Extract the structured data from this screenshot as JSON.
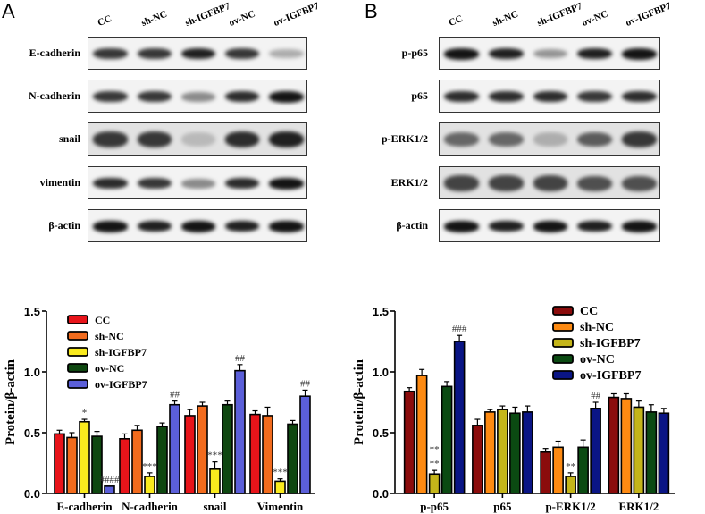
{
  "panels": {
    "A": {
      "letter": "A",
      "lanes": [
        "CC",
        "sh-NC",
        "sh-IGFBP7",
        "ov-NC",
        "ov-IGFBP7"
      ],
      "blots": [
        {
          "label": "E-cadherin",
          "intensity": [
            0.85,
            0.85,
            0.95,
            0.85,
            0.35
          ]
        },
        {
          "label": "N-cadherin",
          "intensity": [
            0.85,
            0.85,
            0.5,
            0.9,
            1.0
          ]
        },
        {
          "label": "snail",
          "intensity": [
            0.85,
            0.85,
            0.3,
            0.9,
            0.95
          ]
        },
        {
          "label": "vimentin",
          "intensity": [
            0.9,
            0.85,
            0.5,
            0.9,
            1.0
          ]
        },
        {
          "label": "β-actin",
          "intensity": [
            1.0,
            0.95,
            1.0,
            0.95,
            1.0
          ]
        }
      ]
    },
    "B": {
      "letter": "B",
      "lanes": [
        "CC",
        "sh-NC",
        "sh-IGFBP7",
        "ov-NC",
        "ov-IGFBP7"
      ],
      "blots": [
        {
          "label": "p-p65",
          "intensity": [
            1.0,
            0.95,
            0.45,
            0.95,
            1.0
          ]
        },
        {
          "label": "p65",
          "intensity": [
            0.9,
            0.9,
            0.9,
            0.85,
            0.9
          ]
        },
        {
          "label": "p-ERK1/2",
          "intensity": [
            0.65,
            0.65,
            0.35,
            0.7,
            0.85
          ]
        },
        {
          "label": "ERK1/2",
          "intensity": [
            0.8,
            0.8,
            0.8,
            0.75,
            0.75
          ]
        },
        {
          "label": "β-actin",
          "intensity": [
            1.0,
            0.95,
            1.0,
            0.95,
            1.0
          ]
        }
      ]
    }
  },
  "chart_data": [
    {
      "type": "bar",
      "title": "",
      "xlabel": "",
      "ylabel": "Protein/β-actin",
      "ylim": [
        0,
        1.5
      ],
      "yticks": [
        "0.0",
        "0.5",
        "1.0",
        "1.5"
      ],
      "grid": false,
      "legend_position": "upper-left-inside",
      "categories": [
        "E-cadherin",
        "N-cadherin",
        "snail",
        "Vimentin"
      ],
      "series": [
        {
          "name": "CC",
          "color": "#e8141a",
          "values": [
            0.49,
            0.45,
            0.64,
            0.65
          ],
          "errors": [
            0.03,
            0.04,
            0.05,
            0.03
          ]
        },
        {
          "name": "sh-NC",
          "color": "#f26b1d",
          "values": [
            0.46,
            0.52,
            0.72,
            0.64
          ],
          "errors": [
            0.04,
            0.04,
            0.03,
            0.07
          ]
        },
        {
          "name": "sh-IGFBP7",
          "color": "#f9ea1e",
          "values": [
            0.59,
            0.14,
            0.2,
            0.1
          ],
          "errors": [
            0.02,
            0.03,
            0.06,
            0.02
          ]
        },
        {
          "name": "ov-NC",
          "color": "#0e4710",
          "values": [
            0.47,
            0.55,
            0.73,
            0.57
          ],
          "errors": [
            0.04,
            0.03,
            0.03,
            0.03
          ]
        },
        {
          "name": "ov-IGFBP7",
          "color": "#5b5fd9",
          "values": [
            0.06,
            0.73,
            1.01,
            0.8
          ],
          "errors": [
            0.0,
            0.03,
            0.05,
            0.05
          ]
        }
      ],
      "annotations": [
        {
          "category": "E-cadherin",
          "series": "sh-IGFBP7",
          "text": "*"
        },
        {
          "category": "E-cadherin",
          "series": "ov-IGFBP7",
          "text": "####"
        },
        {
          "category": "N-cadherin",
          "series": "sh-IGFBP7",
          "text": "***"
        },
        {
          "category": "N-cadherin",
          "series": "ov-IGFBP7",
          "text": "##"
        },
        {
          "category": "snail",
          "series": "sh-IGFBP7",
          "text": "***"
        },
        {
          "category": "snail",
          "series": "ov-IGFBP7",
          "text": "##"
        },
        {
          "category": "Vimentin",
          "series": "sh-IGFBP7",
          "text": "***"
        },
        {
          "category": "Vimentin",
          "series": "ov-IGFBP7",
          "text": "##"
        }
      ]
    },
    {
      "type": "bar",
      "title": "",
      "xlabel": "",
      "ylabel": "Protein/β-actin",
      "ylim": [
        0,
        1.5
      ],
      "yticks": [
        "0.0",
        "0.5",
        "1.0",
        "1.5"
      ],
      "grid": false,
      "legend_position": "upper-right-inside",
      "categories": [
        "p-p65",
        "p65",
        "p-ERK1/2",
        "ERK1/2"
      ],
      "series": [
        {
          "name": "CC",
          "color": "#8b0c0c",
          "values": [
            0.84,
            0.56,
            0.34,
            0.79
          ],
          "errors": [
            0.03,
            0.05,
            0.03,
            0.03
          ]
        },
        {
          "name": "sh-NC",
          "color": "#fd8a12",
          "values": [
            0.97,
            0.67,
            0.38,
            0.78
          ],
          "errors": [
            0.05,
            0.02,
            0.05,
            0.04
          ]
        },
        {
          "name": "sh-IGFBP7",
          "color": "#c4b51a",
          "values": [
            0.16,
            0.69,
            0.14,
            0.71
          ],
          "errors": [
            0.03,
            0.03,
            0.03,
            0.05
          ]
        },
        {
          "name": "ov-NC",
          "color": "#0b4a12",
          "values": [
            0.88,
            0.66,
            0.38,
            0.67
          ],
          "errors": [
            0.04,
            0.05,
            0.06,
            0.06
          ]
        },
        {
          "name": "ov-IGFBP7",
          "color": "#0a1585",
          "values": [
            1.25,
            0.67,
            0.7,
            0.66
          ],
          "errors": [
            0.05,
            0.05,
            0.05,
            0.04
          ]
        }
      ],
      "annotations": [
        {
          "category": "p-p65",
          "series": "sh-IGFBP7",
          "text": "**"
        },
        {
          "category": "p-p65",
          "series": "sh-IGFBP7",
          "text": "**"
        },
        {
          "category": "p-p65",
          "series": "ov-IGFBP7",
          "text": "###"
        },
        {
          "category": "p-ERK1/2",
          "series": "sh-IGFBP7",
          "text": "**"
        },
        {
          "category": "p-ERK1/2",
          "series": "ov-IGFBP7",
          "text": "##"
        }
      ]
    }
  ]
}
